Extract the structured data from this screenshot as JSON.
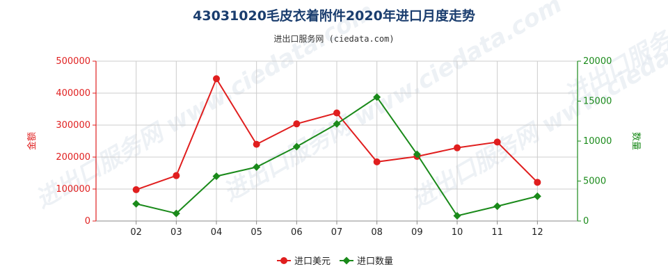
{
  "title": "43031020毛皮衣着附件2020年进口月度走势",
  "subtitle": "进出口服务网 (ciedata.com)",
  "watermark": "进出口服务网 www.ciedata.com",
  "colors": {
    "amount": "#e01e1e",
    "quantity": "#1a8a1a",
    "grid": "#cccccc",
    "title": "#1a3d6e"
  },
  "chart_data": {
    "type": "line",
    "title": "43031020毛皮衣着附件2020年进口月度走势",
    "categories": [
      "02",
      "03",
      "04",
      "05",
      "06",
      "07",
      "08",
      "09",
      "10",
      "11",
      "12"
    ],
    "y_left": {
      "label": "金额",
      "ylim": [
        0,
        500000
      ],
      "ticks": [
        "0",
        "100000",
        "200000",
        "300000",
        "400000",
        "500000"
      ]
    },
    "y_right": {
      "label": "数量",
      "ylim": [
        0,
        20000
      ],
      "ticks": [
        "0",
        "5000",
        "10000",
        "15000",
        "20000"
      ]
    },
    "series": [
      {
        "name": "进口美元",
        "axis": "left",
        "marker": "circle",
        "values": [
          98000,
          142000,
          445000,
          240000,
          304000,
          338000,
          185000,
          202000,
          229000,
          247000,
          121000
        ]
      },
      {
        "name": "进口数量",
        "axis": "right",
        "marker": "diamond",
        "values": [
          2150,
          950,
          5600,
          6750,
          9300,
          12150,
          15500,
          8350,
          650,
          1850,
          3100
        ]
      }
    ],
    "grid": true,
    "legend_position": "bottom-center"
  }
}
